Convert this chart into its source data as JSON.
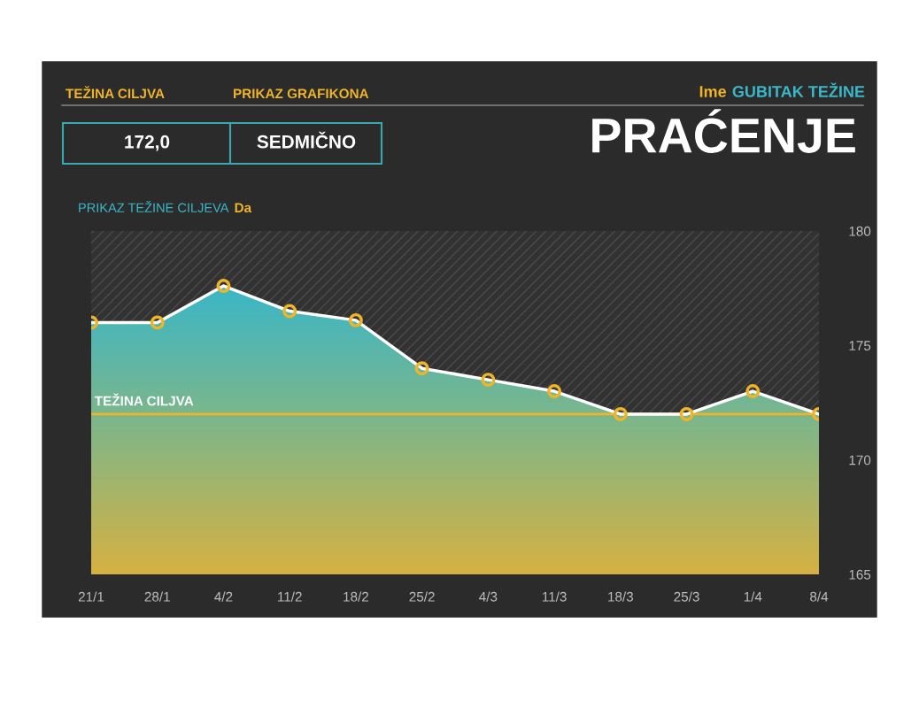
{
  "chart_data": {
    "type": "area",
    "title": "PRAĆENJE",
    "annotations": [
      "TEŽINA CILJVA",
      "PRIKAZ GRAFIKONA",
      "172,0",
      "SEDMIČNO",
      "Ime",
      "GUBITAK TEŽINE",
      "PRIKAZ TEŽINE CILJEVA",
      "Da"
    ],
    "categories": [
      "21/1",
      "28/1",
      "4/2",
      "11/2",
      "18/2",
      "25/2",
      "4/3",
      "11/3",
      "18/3",
      "25/3",
      "1/4",
      "8/4"
    ],
    "series": [
      {
        "color": "#f0b429",
        "values": [
          176.0,
          176.0,
          177.6,
          176.5,
          176.1,
          174.0,
          173.5,
          173.0,
          172.0,
          172.0,
          173.0,
          172.0
        ]
      }
    ],
    "ylim": [
      165,
      180
    ],
    "yticks": [
      165,
      170,
      175,
      180
    ],
    "grid": false,
    "legend": false,
    "marker": "circle",
    "line_style": "solid",
    "ref_lines": [
      {
        "axis": "y",
        "value": 172,
        "label": "TEŽINA CILJVA",
        "color": "#f0b429"
      }
    ]
  }
}
